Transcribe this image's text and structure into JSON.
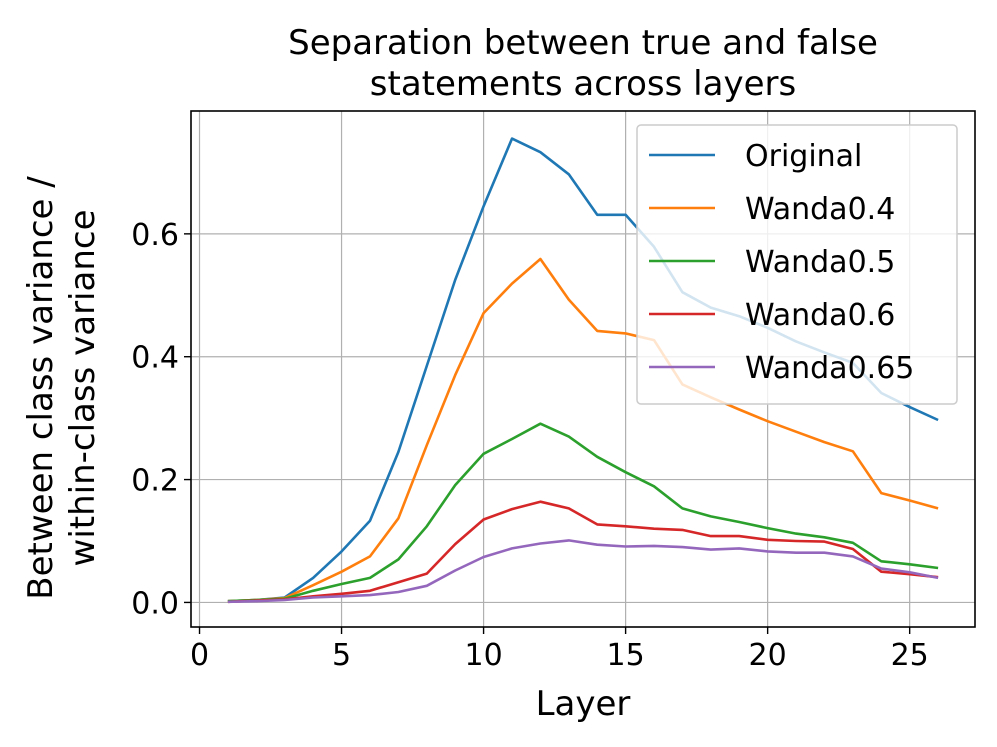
{
  "chart_data": {
    "type": "line",
    "title": [
      "Separation between true and false",
      "statements across layers"
    ],
    "xlabel": "Layer",
    "ylabel": [
      "Between class variance /",
      "within-class variance"
    ],
    "xlim": [
      -0.3,
      27.3
    ],
    "ylim": [
      -0.04,
      0.8
    ],
    "xticks": [
      0,
      5,
      10,
      15,
      20,
      25
    ],
    "xtick_labels": [
      "0",
      "5",
      "10",
      "15",
      "20",
      "25"
    ],
    "yticks": [
      0.0,
      0.2,
      0.4,
      0.6
    ],
    "ytick_labels": [
      "0.0",
      "0.2",
      "0.4",
      "0.6"
    ],
    "grid": true,
    "legend_position": "top-right",
    "x": [
      1,
      2,
      3,
      4,
      5,
      6,
      7,
      8,
      9,
      10,
      11,
      12,
      13,
      14,
      15,
      16,
      17,
      18,
      19,
      20,
      21,
      22,
      23,
      24,
      25,
      26
    ],
    "series": [
      {
        "name": "Original",
        "color": "#1f77b4",
        "values": [
          0.002,
          0.004,
          0.008,
          0.04,
          0.083,
          0.133,
          0.245,
          0.385,
          0.525,
          0.645,
          0.755,
          0.733,
          0.697,
          0.631,
          0.631,
          0.579,
          0.505,
          0.48,
          0.466,
          0.447,
          0.425,
          0.407,
          0.39,
          0.341,
          0.318,
          0.297
        ]
      },
      {
        "name": "Wanda0.4",
        "color": "#ff7f0e",
        "values": [
          0.002,
          0.004,
          0.007,
          0.028,
          0.05,
          0.075,
          0.137,
          0.256,
          0.37,
          0.471,
          0.519,
          0.559,
          0.493,
          0.442,
          0.438,
          0.427,
          0.355,
          0.334,
          0.314,
          0.295,
          0.278,
          0.261,
          0.246,
          0.178,
          0.166,
          0.153
        ]
      },
      {
        "name": "Wanda0.5",
        "color": "#2ca02c",
        "values": [
          0.002,
          0.004,
          0.006,
          0.019,
          0.03,
          0.04,
          0.07,
          0.124,
          0.191,
          0.242,
          0.266,
          0.291,
          0.27,
          0.237,
          0.212,
          0.189,
          0.153,
          0.14,
          0.131,
          0.121,
          0.112,
          0.106,
          0.097,
          0.067,
          0.062,
          0.056
        ]
      },
      {
        "name": "Wanda0.6",
        "color": "#d62728",
        "values": [
          0.001,
          0.003,
          0.005,
          0.01,
          0.014,
          0.019,
          0.033,
          0.047,
          0.095,
          0.135,
          0.152,
          0.164,
          0.153,
          0.127,
          0.124,
          0.12,
          0.118,
          0.108,
          0.108,
          0.102,
          0.1,
          0.099,
          0.087,
          0.05,
          0.046,
          0.041
        ]
      },
      {
        "name": "Wanda0.65",
        "color": "#9467bd",
        "values": [
          0.001,
          0.002,
          0.004,
          0.008,
          0.01,
          0.012,
          0.017,
          0.027,
          0.052,
          0.074,
          0.088,
          0.096,
          0.101,
          0.094,
          0.091,
          0.092,
          0.09,
          0.086,
          0.088,
          0.083,
          0.081,
          0.081,
          0.075,
          0.055,
          0.049,
          0.04
        ]
      }
    ]
  }
}
